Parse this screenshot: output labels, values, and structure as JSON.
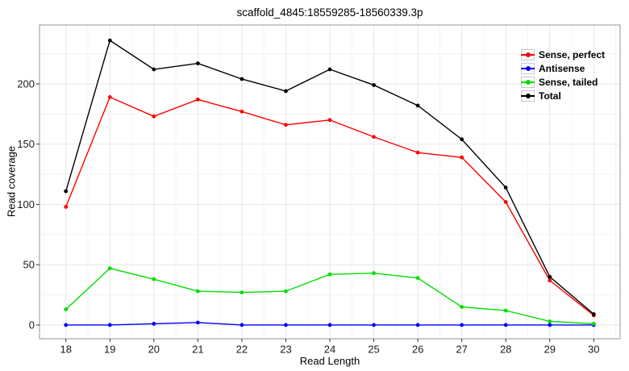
{
  "chart_data": {
    "type": "line",
    "title": "scaffold_4845:18559285-18560339.3p",
    "xlabel": "Read Length",
    "ylabel": "Read coverage",
    "x": [
      18,
      19,
      20,
      21,
      22,
      23,
      24,
      25,
      26,
      27,
      28,
      29,
      30
    ],
    "series": [
      {
        "name": "Sense, perfect",
        "color": "#ff0000",
        "values": [
          98,
          189,
          173,
          187,
          177,
          166,
          170,
          156,
          143,
          139,
          102,
          37,
          8
        ]
      },
      {
        "name": "Antisense",
        "color": "#0000ff",
        "values": [
          0,
          0,
          1,
          2,
          0,
          0,
          0,
          0,
          0,
          0,
          0,
          0,
          0
        ]
      },
      {
        "name": "Sense, tailed",
        "color": "#00dd00",
        "values": [
          13,
          47,
          38,
          28,
          27,
          28,
          42,
          43,
          39,
          15,
          12,
          3,
          1
        ]
      },
      {
        "name": "Total",
        "color": "#000000",
        "values": [
          111,
          236,
          212,
          217,
          204,
          194,
          212,
          199,
          182,
          154,
          114,
          40,
          9
        ]
      }
    ],
    "x_ticks": [
      18,
      19,
      20,
      21,
      22,
      23,
      24,
      25,
      26,
      27,
      28,
      29,
      30
    ],
    "y_ticks": [
      0,
      50,
      100,
      150,
      200
    ],
    "xlim": [
      17.4,
      30.6
    ],
    "ylim": [
      -11.4,
      248.8
    ],
    "grid": "major+minor",
    "legend_position": "top-right"
  },
  "style": {
    "grid_major_color": "#e7e7e7",
    "grid_minor_color": "#f3f3f3",
    "panel_border_color": "#969696",
    "tick_color": "#333333",
    "tick_label_color": "#1a1a1a",
    "background": "#ffffff"
  }
}
